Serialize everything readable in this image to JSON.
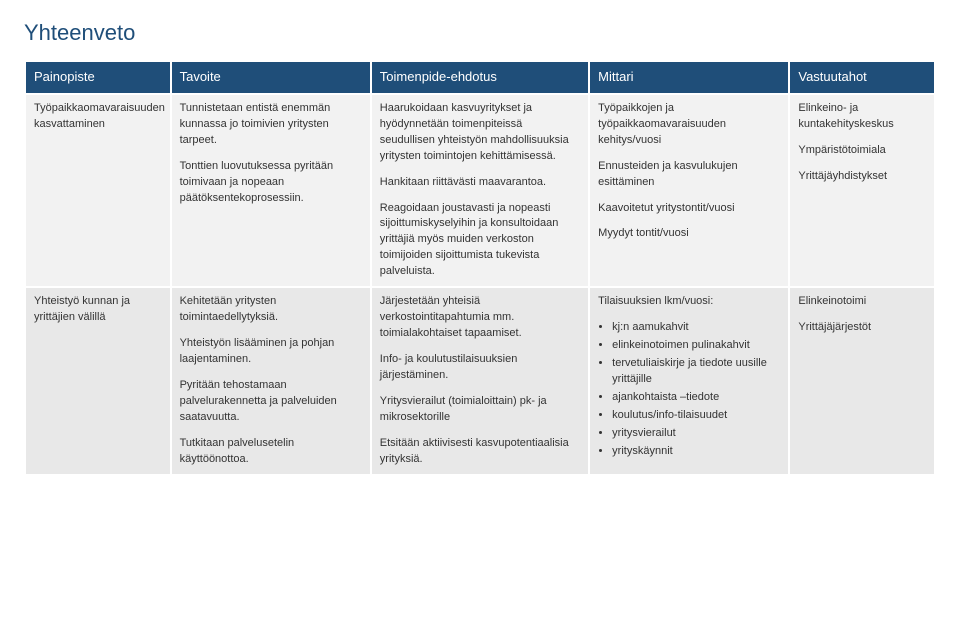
{
  "title": "Yhteenveto",
  "title_color": "#1f4e79",
  "headers": {
    "c0": "Painopiste",
    "c1": "Tavoite",
    "c2": "Toimenpide-ehdotus",
    "c3": "Mittari",
    "c4": "Vastuutahot"
  },
  "header_bg": "#1f4e79",
  "rows": [
    {
      "bg": "#f2f2f2",
      "c0": [
        "Työpaikkaomavaraisuuden kasvattaminen"
      ],
      "c1": [
        "Tunnistetaan entistä enemmän kunnassa jo toimivien yritysten tarpeet.",
        "Tonttien luovutuksessa pyritään toimivaan ja nopeaan päätöksentekoprosessiin."
      ],
      "c2": [
        "Haarukoidaan kasvuyritykset ja hyödynnetään toimenpiteissä seudullisen yhteistyön mahdollisuuksia yritysten toimintojen kehittämisessä.",
        "Hankitaan riittävästi maavarantoa.",
        "Reagoidaan joustavasti ja nopeasti sijoittumiskyselyihin ja konsultoidaan yrittäjiä myös muiden verkoston toimijoiden sijoittumista tukevista palveluista."
      ],
      "c3": [
        "Työpaikkojen ja työpaikkaomavaraisuuden kehitys/vuosi",
        "Ennusteiden ja kasvulukujen esittäminen",
        "Kaavoitetut yritystontit/vuosi",
        "Myydyt tontit/vuosi"
      ],
      "c4": [
        "Elinkeino- ja kuntakehityskeskus",
        "Ympäristötoimiala",
        "Yrittäjäyhdistykset"
      ]
    },
    {
      "bg": "#e8e8e8",
      "c0": [
        "Yhteistyö kunnan ja yrittäjien välillä"
      ],
      "c1": [
        "Kehitetään yritysten toimintaedellytyksiä.",
        "Yhteistyön lisääminen ja pohjan laajentaminen.",
        "Pyritään tehostamaan palvelurakennetta ja palveluiden saatavuutta.",
        "Tutkitaan palvelusetelin käyttöönottoa."
      ],
      "c2": [
        "Järjestetään yhteisiä verkostointitapahtumia mm. toimialakohtaiset tapaamiset.",
        "Info- ja koulutustilaisuuksien järjestäminen.",
        "Yritysvierailut (toimialoittain) pk- ja mikrosektorille",
        "Etsitään aktiivisesti kasvupotentiaalisia yrityksiä."
      ],
      "c3_intro": "Tilaisuuksien lkm/vuosi:",
      "c3_items": [
        "kj:n aamukahvit",
        "elinkeinotoimen pulinakahvit",
        "tervetuliaiskirje ja tiedote uusille yrittäjille",
        "ajankohtaista –tiedote",
        "koulutus/info-tilaisuudet",
        "yritysvierailut",
        "yrityskäynnit"
      ],
      "c4": [
        "Elinkeinotoimi",
        "Yrittäjäjärjestöt"
      ]
    }
  ]
}
